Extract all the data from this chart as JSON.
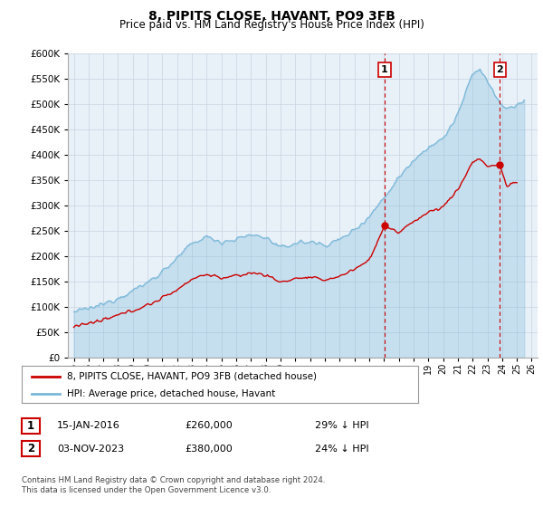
{
  "title": "8, PIPITS CLOSE, HAVANT, PO9 3FB",
  "subtitle": "Price paid vs. HM Land Registry's House Price Index (HPI)",
  "legend_line1": "8, PIPITS CLOSE, HAVANT, PO9 3FB (detached house)",
  "legend_line2": "HPI: Average price, detached house, Havant",
  "annotation1_date": "15-JAN-2016",
  "annotation1_price": "£260,000",
  "annotation1_hpi": "29% ↓ HPI",
  "annotation2_date": "03-NOV-2023",
  "annotation2_price": "£380,000",
  "annotation2_hpi": "24% ↓ HPI",
  "footnote": "Contains HM Land Registry data © Crown copyright and database right 2024.\nThis data is licensed under the Open Government Licence v3.0.",
  "hpi_color": "#7ab8d9",
  "hpi_fill_color": "#daeaf5",
  "price_color": "#cc0000",
  "annotation_color": "#cc0000",
  "background_color": "#e8f0f8",
  "ylim": [
    0,
    600000
  ],
  "yticks": [
    0,
    50000,
    100000,
    150000,
    200000,
    250000,
    300000,
    350000,
    400000,
    450000,
    500000,
    550000,
    600000
  ],
  "sale1_year": 2016.04,
  "sale1_price": 260000,
  "sale2_year": 2023.84,
  "sale2_price": 380000,
  "vline_color": "#cc0000",
  "grid_color": "#c8d4e0",
  "spine_color": "#aaaaaa"
}
